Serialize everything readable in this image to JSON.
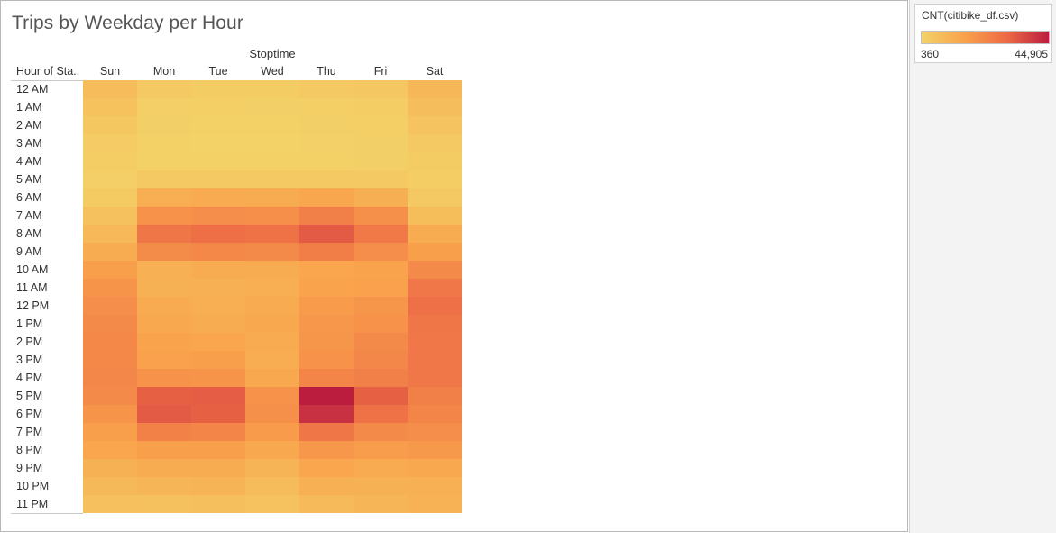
{
  "chart_data": {
    "type": "heatmap",
    "title": "Trips by Weekday per Hour",
    "column_group_label": "Stoptime",
    "row_header": "Hour of Sta..",
    "columns": [
      "Sun",
      "Mon",
      "Tue",
      "Wed",
      "Thu",
      "Fri",
      "Sat"
    ],
    "rows": [
      "12 AM",
      "1 AM",
      "2 AM",
      "3 AM",
      "4 AM",
      "5 AM",
      "6 AM",
      "7 AM",
      "8 AM",
      "9 AM",
      "10 AM",
      "11 AM",
      "12 PM",
      "1 PM",
      "2 PM",
      "3 PM",
      "4 PM",
      "5 PM",
      "6 PM",
      "7 PM",
      "8 PM",
      "9 PM",
      "10 PM",
      "11 PM"
    ],
    "values": [
      [
        7400,
        3200,
        2300,
        2300,
        3000,
        3700,
        8800
      ],
      [
        5400,
        1600,
        1200,
        1100,
        1400,
        1900,
        6800
      ],
      [
        3900,
        1000,
        700,
        700,
        900,
        1300,
        5000
      ],
      [
        2600,
        700,
        500,
        500,
        600,
        900,
        3500
      ],
      [
        1800,
        800,
        700,
        700,
        700,
        900,
        2300
      ],
      [
        1600,
        3200,
        3000,
        3100,
        3100,
        3200,
        2000
      ],
      [
        2800,
        11500,
        12300,
        12000,
        13700,
        11300,
        3600
      ],
      [
        5600,
        19500,
        20500,
        20300,
        24500,
        20000,
        7000
      ],
      [
        8300,
        27000,
        29000,
        28000,
        33000,
        26000,
        12000
      ],
      [
        12000,
        21000,
        22000,
        21500,
        25000,
        20500,
        16000
      ],
      [
        16000,
        11000,
        12000,
        12000,
        14000,
        15000,
        21500
      ],
      [
        19000,
        10500,
        11000,
        11500,
        15000,
        15500,
        26500
      ],
      [
        20500,
        12500,
        11500,
        12500,
        17000,
        18500,
        28500
      ],
      [
        21500,
        13000,
        12000,
        13000,
        18000,
        19500,
        27000
      ],
      [
        22000,
        14500,
        14000,
        12500,
        18500,
        21500,
        26500
      ],
      [
        22000,
        15500,
        16000,
        11800,
        19500,
        22500,
        26500
      ],
      [
        22500,
        19500,
        19000,
        13500,
        23000,
        24500,
        26500
      ],
      [
        21500,
        32000,
        32500,
        19500,
        44905,
        32000,
        24500
      ],
      [
        19000,
        33000,
        32000,
        20000,
        41000,
        28000,
        23000
      ],
      [
        16000,
        24000,
        23000,
        17000,
        27000,
        21500,
        20500
      ],
      [
        14000,
        16000,
        16000,
        13500,
        18000,
        16500,
        17500
      ],
      [
        10500,
        12000,
        12000,
        9700,
        14000,
        12500,
        13000
      ],
      [
        8000,
        9000,
        9500,
        7200,
        11000,
        10500,
        11000
      ],
      [
        6000,
        5800,
        6300,
        5200,
        7700,
        9000,
        10200
      ]
    ],
    "color_scale": {
      "field": "CNT(citibike_df.csv)",
      "min": 360,
      "max": 44905,
      "min_label": "360",
      "max_label": "44,905",
      "colors": [
        "#f3d268",
        "#f9a24c",
        "#ed6a45",
        "#bb1d3f"
      ]
    }
  }
}
